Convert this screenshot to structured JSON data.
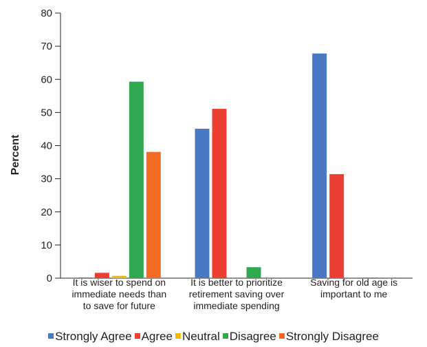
{
  "chart_data": {
    "type": "bar",
    "ylabel": "Percent",
    "ylim": [
      0,
      80
    ],
    "yticks": [
      0,
      10,
      20,
      30,
      40,
      50,
      60,
      70,
      80
    ],
    "categories": [
      [
        "It is wiser to spend on",
        "immediate needs than",
        "to save for future"
      ],
      [
        "It is better to prioritize",
        "retirement saving over",
        "immediate spending"
      ],
      [
        "Saving for old age is",
        "important to me"
      ]
    ],
    "series": [
      {
        "name": "Strongly Agree",
        "color": "#4a78c3",
        "values": [
          0.2,
          45.1,
          67.8
        ]
      },
      {
        "name": "Agree",
        "color": "#ec3e32",
        "values": [
          1.6,
          51.1,
          31.4
        ]
      },
      {
        "name": "Neutral",
        "color": "#f4b800",
        "values": [
          0.7,
          0,
          0
        ]
      },
      {
        "name": "Disagree",
        "color": "#2fa84f",
        "values": [
          59.3,
          3.3,
          0.2
        ]
      },
      {
        "name": "Strongly Disagree",
        "color": "#f26c23",
        "values": [
          38.1,
          0,
          0
        ]
      }
    ],
    "legend_position": "bottom",
    "grid": false
  }
}
